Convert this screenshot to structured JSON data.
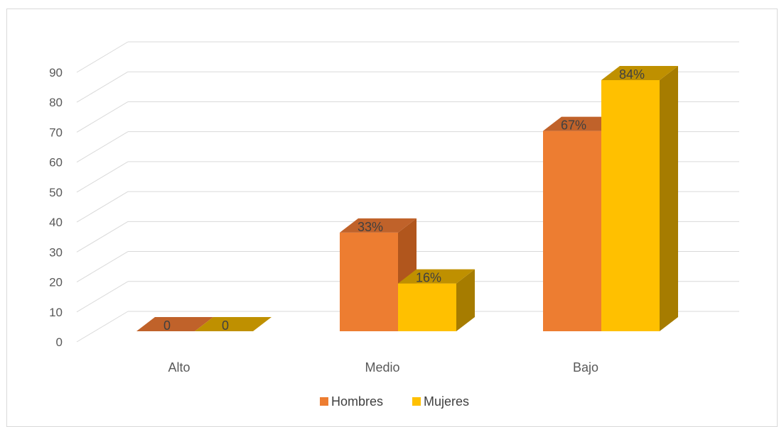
{
  "chart_data": {
    "type": "bar",
    "style": "3d-clustered-column",
    "categories": [
      "Alto",
      "Medio",
      "Bajo"
    ],
    "series": [
      {
        "name": "Hombres",
        "values": [
          0,
          33,
          67
        ],
        "labels": [
          "0",
          "33%",
          "67%"
        ],
        "color": "#ED7D31",
        "side_color": "#B1561D",
        "top_color": "#C0622A"
      },
      {
        "name": "Mujeres",
        "values": [
          0,
          16,
          84
        ],
        "labels": [
          "0",
          "16%",
          "84%"
        ],
        "color": "#FFC000",
        "side_color": "#A67C00",
        "top_color": "#BF9000"
      }
    ],
    "ylim": [
      0,
      90
    ],
    "ytick_labels": [
      "0",
      "10",
      "20",
      "30",
      "40",
      "50",
      "60",
      "70",
      "80",
      "90"
    ],
    "grid": true,
    "legend_position": "bottom",
    "title": "",
    "xlabel": "",
    "ylabel": ""
  }
}
